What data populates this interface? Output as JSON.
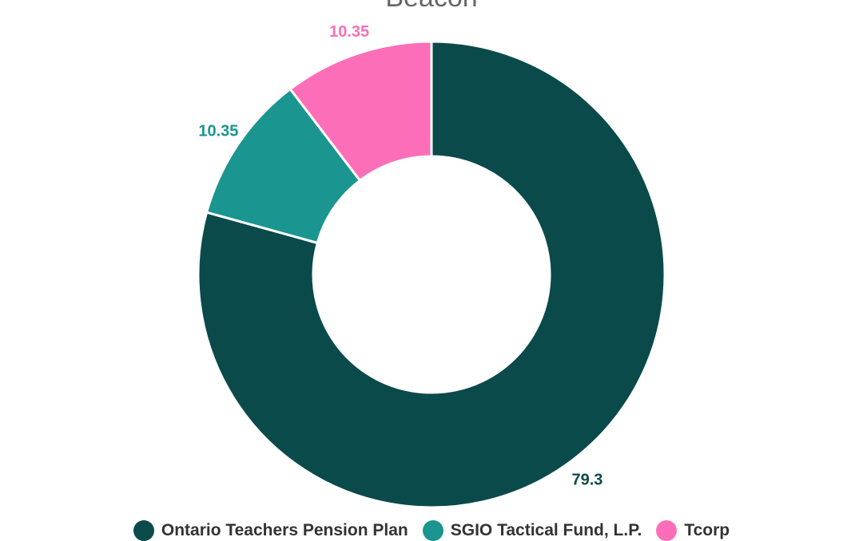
{
  "chart_data": {
    "type": "pie",
    "style": "donut",
    "title": "Beacon",
    "legend_position": "bottom",
    "series": [
      {
        "name": "Ontario Teachers Pension Plan",
        "value": 79.3,
        "label": "79.3",
        "color": "#0b4a4b"
      },
      {
        "name": "SGIO Tactical Fund, L.P.",
        "value": 10.35,
        "label": "10.35",
        "color": "#1a9590"
      },
      {
        "name": "Tcorp",
        "value": 10.35,
        "label": "10.35",
        "color": "#fd6eb9"
      }
    ]
  }
}
